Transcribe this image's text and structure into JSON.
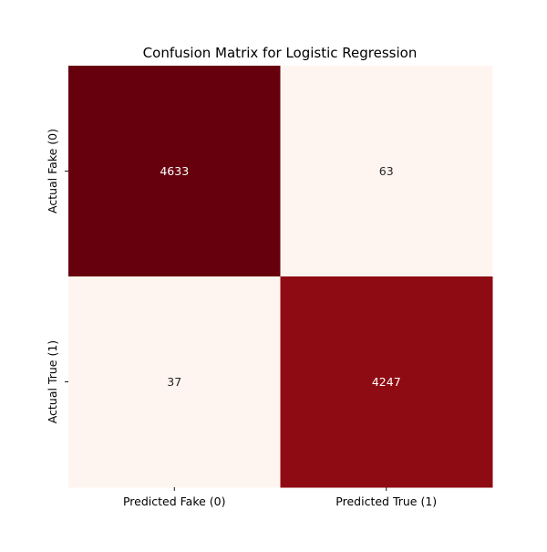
{
  "chart_data": {
    "type": "heatmap",
    "title": "Confusion Matrix for Logistic Regression",
    "xlabel": "",
    "ylabel": "",
    "x_categories": [
      "Predicted Fake (0)",
      "Predicted True (1)"
    ],
    "y_categories": [
      "Actual Fake (0)",
      "Actual True (1)"
    ],
    "values": [
      [
        4633,
        63
      ],
      [
        37,
        4247
      ]
    ],
    "colormap": "Reds",
    "vmin": 37,
    "vmax": 4633,
    "colorbar": false,
    "cell_colors": [
      [
        "#67000d",
        "#fff5f0"
      ],
      [
        "#fff5f0",
        "#8f0b13"
      ]
    ],
    "cell_text_colors": [
      [
        "#ffffff",
        "#262626"
      ],
      [
        "#262626",
        "#ffffff"
      ]
    ]
  }
}
